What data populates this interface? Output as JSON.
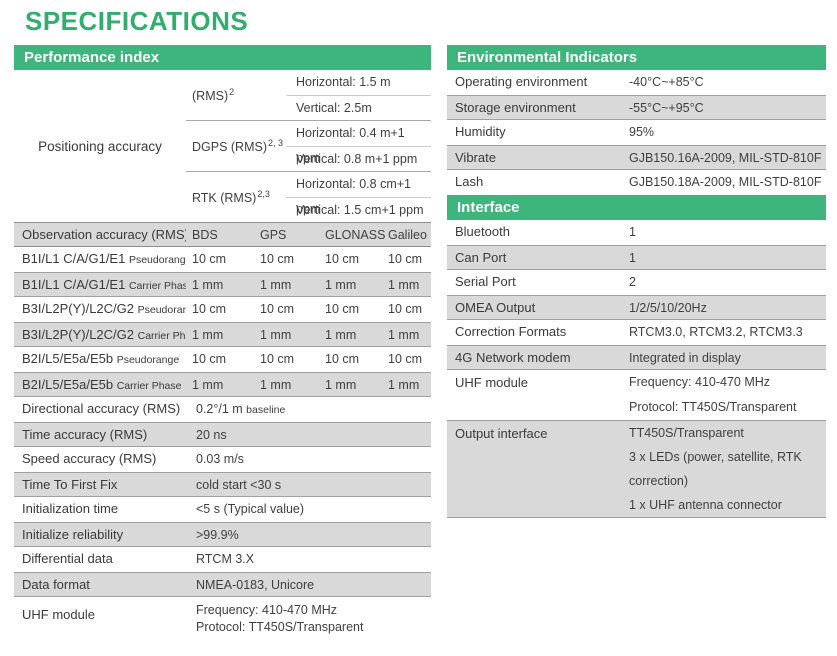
{
  "title": "SPECIFICATIONS",
  "colors": {
    "accent_green": "#3db57c",
    "row_shade": "#d9d9d9"
  },
  "left": {
    "header": "Performance index",
    "positioning": {
      "label": "Positioning accuracy",
      "groups": [
        {
          "method": "(RMS)",
          "sup": "2",
          "lines": [
            "Horizontal:  1.5 m",
            "Vertical:  2.5m"
          ]
        },
        {
          "method": "DGPS (RMS)",
          "sup": "2, 3",
          "lines": [
            "Horizontal:  0.4 m+1 ppm",
            "Vertical:  0.8 m+1 ppm"
          ]
        },
        {
          "method": "RTK (RMS)",
          "sup": "2,3",
          "lines": [
            "Horizontal:  0.8 cm+1 ppm",
            "Vertical:  1.5 cm+1 ppm"
          ]
        }
      ]
    },
    "obs": {
      "label": "Observation accuracy  (RMS)",
      "columns": [
        "BDS",
        "GPS",
        "GLONASS",
        "Galileo"
      ],
      "rows": [
        {
          "signal": "B1I/L1 C/A/G1/E1",
          "type": "Pseudorange",
          "values": [
            "10 cm",
            "10 cm",
            "10 cm",
            "10 cm"
          ]
        },
        {
          "signal": "B1I/L1 C/A/G1/E1",
          "type": "Carrier Phase",
          "values": [
            "1 mm",
            "1 mm",
            "1 mm",
            "1 mm"
          ]
        },
        {
          "signal": "B3I/L2P(Y)/L2C/G2",
          "type": "Pseudorange",
          "values": [
            "10 cm",
            "10 cm",
            "10 cm",
            "10 cm"
          ]
        },
        {
          "signal": "B3I/L2P(Y)/L2C/G2",
          "type": "Carrier Phase",
          "values": [
            "1 mm",
            "1 mm",
            "1 mm",
            "1 mm"
          ]
        },
        {
          "signal": "B2I/L5/E5a/E5b",
          "type": "Pseudorange",
          "values": [
            "10 cm",
            "10 cm",
            "10 cm",
            "10 cm"
          ]
        },
        {
          "signal": "B2I/L5/E5a/E5b",
          "type": "Carrier Phase",
          "values": [
            "1 mm",
            "1 mm",
            "1 mm",
            "1 mm"
          ]
        }
      ]
    },
    "rows": [
      {
        "label": "Directional accuracy (RMS)",
        "value": "0.2°/1 m",
        "value_small": "baseline"
      },
      {
        "label": "Time accuracy (RMS)",
        "value": "20 ns"
      },
      {
        "label": "Speed accuracy (RMS)",
        "value": "0.03 m/s"
      },
      {
        "label": "Time To First Fix",
        "value": "cold start <30 s"
      },
      {
        "label": "Initialization time",
        "value": "<5 s (Typical value)"
      },
      {
        "label": "Initialize reliability",
        "value": ">99.9%"
      },
      {
        "label": "Differential data",
        "value": "RTCM 3.X"
      },
      {
        "label": "Data format",
        "value": "NMEA-0183, Unicore"
      },
      {
        "label": "UHF module",
        "lines": [
          "Frequency: 410-470 MHz",
          "Protocol: TT450S/Transparent"
        ]
      }
    ]
  },
  "right": {
    "env": {
      "header": "Environmental Indicators",
      "rows": [
        {
          "label": "Operating environment",
          "value": "-40°C~+85°C"
        },
        {
          "label": "Storage environment",
          "value": "-55°C~+95°C"
        },
        {
          "label": "Humidity",
          "value": "95%"
        },
        {
          "label": "Vibrate",
          "value": "GJB150.16A-2009,  MIL-STD-810F"
        },
        {
          "label": "Lash",
          "value": "GJB150.18A-2009,  MIL-STD-810F"
        }
      ]
    },
    "iface": {
      "header": "Interface",
      "rows": [
        {
          "label": "Bluetooth",
          "value": "1"
        },
        {
          "label": "Can Port",
          "value": "1"
        },
        {
          "label": "Serial Port",
          "value": "2"
        },
        {
          "label": "OMEA Output",
          "value": "1/2/5/10/20Hz"
        },
        {
          "label": "Correction Formats",
          "value": "RTCM3.0, RTCM3.2, RTCM3.3"
        },
        {
          "label": "4G Network modem",
          "value": "Integrated in display"
        },
        {
          "label": "UHF module",
          "lines": [
            "Frequency: 410-470 MHz",
            "Protocol: TT450S/Transparent"
          ]
        },
        {
          "label": "Output interface",
          "lines": [
            "TT450S/Transparent",
            "3 x LEDs (power, satellite, RTK correction)",
            "1 x UHF antenna connector"
          ]
        }
      ]
    }
  }
}
